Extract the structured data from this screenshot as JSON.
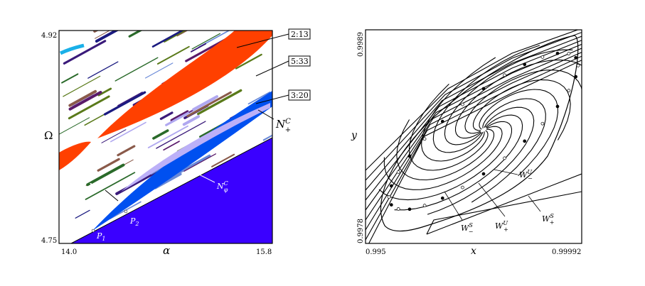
{
  "left_panel": {
    "y_axis": {
      "label": "Ω",
      "ticks": [
        "4.92",
        "4.75"
      ]
    },
    "x_axis": {
      "label": "α",
      "ticks": [
        "14.0",
        "15.8"
      ]
    },
    "region_labels": [
      "2:13",
      "5:33",
      "3:20"
    ],
    "curve_labels": {
      "n_plus_c_right": "N",
      "n_plus_c_right_sup": "C",
      "n_plus_c_right_sub": "+",
      "n_plus_left": "N",
      "n_plus_left_sup": "C",
      "n_plus_left_sub": "+",
      "n_phi": "N",
      "n_phi_sup": "C",
      "n_phi_sub": "φ"
    },
    "points": [
      "P",
      "P"
    ],
    "point_subs": [
      "1",
      "2"
    ],
    "colors": {
      "region_2_13": "#ff4000",
      "region_3_20": "#0050f0",
      "lower_region": "#3a00ff",
      "light_blue": "#bcb0f8"
    }
  },
  "right_panel": {
    "y_axis": {
      "label": "y",
      "ticks": [
        "0.9989",
        "0.9978"
      ]
    },
    "x_axis": {
      "label": "x",
      "ticks": [
        "0.995",
        "0.99992"
      ]
    },
    "manifold_labels": [
      {
        "base": "W",
        "sup": "U",
        "sub": "−"
      },
      {
        "base": "W",
        "sup": "U",
        "sub": "+"
      },
      {
        "base": "W",
        "sup": "S",
        "sub": "−"
      },
      {
        "base": "W",
        "sup": "S",
        "sub": "+"
      }
    ]
  }
}
